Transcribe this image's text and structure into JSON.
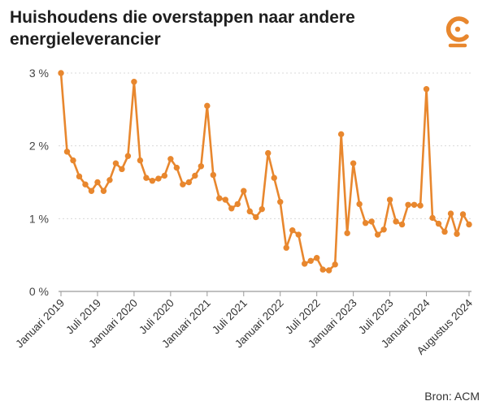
{
  "title": "Huishoudens die overstappen naar andere energieleverancier",
  "source": "Bron: ACM",
  "colors": {
    "line": "#E8872E",
    "grid": "#d9d9d9",
    "axis": "#9a9a9a",
    "logo": "#E8872E"
  },
  "logo_icon": "c-logo-icon",
  "chart_data": {
    "type": "line",
    "x_labels": [
      "Januari 2019",
      "Juli 2019",
      "Januari 2020",
      "Juli 2020",
      "Januari 2021",
      "Juli 2021",
      "Januari 2022",
      "Juli 2022",
      "Januari 2023",
      "Juli 2023",
      "Januari 2024",
      "Augustus 2024"
    ],
    "x_label_index": [
      0,
      6,
      12,
      18,
      24,
      30,
      36,
      42,
      48,
      54,
      60,
      67
    ],
    "y_ticks": [
      "0 %",
      "1 %",
      "2 %",
      "3 %"
    ],
    "y_tick_values": [
      0,
      1,
      2,
      3
    ],
    "ylim": [
      0,
      3
    ],
    "grid": true,
    "values": [
      3.0,
      1.92,
      1.8,
      1.58,
      1.47,
      1.38,
      1.5,
      1.38,
      1.53,
      1.76,
      1.68,
      1.86,
      2.88,
      1.8,
      1.56,
      1.52,
      1.55,
      1.59,
      1.82,
      1.7,
      1.47,
      1.5,
      1.59,
      1.72,
      2.55,
      1.6,
      1.28,
      1.26,
      1.14,
      1.2,
      1.38,
      1.1,
      1.02,
      1.13,
      1.9,
      1.56,
      1.23,
      0.6,
      0.84,
      0.78,
      0.38,
      0.42,
      0.46,
      0.3,
      0.29,
      0.37,
      2.16,
      0.8,
      1.76,
      1.2,
      0.94,
      0.96,
      0.78,
      0.85,
      1.26,
      0.96,
      0.92,
      1.19,
      1.19,
      1.18,
      2.78,
      1.01,
      0.93,
      0.82,
      1.07,
      0.79,
      1.06,
      0.92
    ]
  }
}
